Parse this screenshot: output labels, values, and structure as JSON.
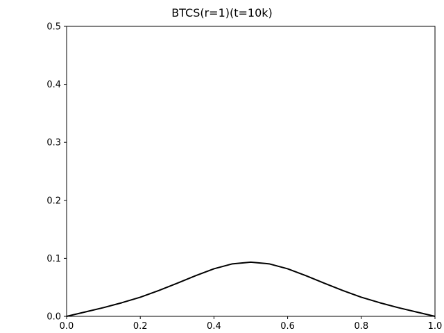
{
  "chart_data": {
    "type": "line",
    "title": "BTCS(r=1)(t=10k)",
    "xlabel": "",
    "ylabel": "",
    "xlim": [
      0.0,
      1.0
    ],
    "ylim": [
      0.0,
      0.5
    ],
    "x_ticks": [
      0.0,
      0.2,
      0.4,
      0.6,
      0.8,
      1.0
    ],
    "x_tick_labels": [
      "0.0",
      "0.2",
      "0.4",
      "0.6",
      "0.8",
      "1.0"
    ],
    "y_ticks": [
      0.0,
      0.1,
      0.2,
      0.3,
      0.4,
      0.5
    ],
    "y_tick_labels": [
      "0.0",
      "0.1",
      "0.2",
      "0.3",
      "0.4",
      "0.5"
    ],
    "grid": false,
    "legend": "none",
    "series": [
      {
        "color": "#000000",
        "x": [
          0.0,
          0.05,
          0.1,
          0.15,
          0.2,
          0.25,
          0.3,
          0.35,
          0.4,
          0.45,
          0.5,
          0.55,
          0.6,
          0.65,
          0.7,
          0.75,
          0.8,
          0.85,
          0.9,
          0.95,
          1.0
        ],
        "y": [
          0.0,
          0.0075,
          0.015,
          0.0235,
          0.033,
          0.0445,
          0.057,
          0.07,
          0.082,
          0.0905,
          0.0935,
          0.0905,
          0.082,
          0.07,
          0.057,
          0.0445,
          0.033,
          0.0235,
          0.015,
          0.0075,
          0.0
        ]
      }
    ]
  }
}
